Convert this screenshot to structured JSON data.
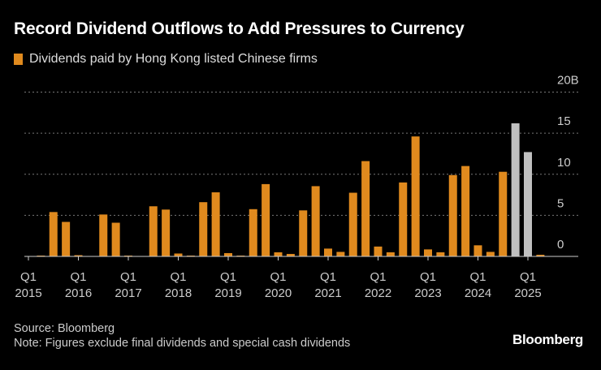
{
  "chart_data": {
    "type": "bar",
    "title": "Record Dividend Outflows to Add Pressures to Currency",
    "legend": [
      {
        "name": "Dividends paid by Hong Kong listed Chinese firms",
        "color": "#e08a1e"
      }
    ],
    "legend_placement": "top-left",
    "ylim": [
      0,
      20
    ],
    "yticks": [
      "0",
      "5",
      "10",
      "15",
      "20B"
    ],
    "ytick_values": [
      0,
      5,
      10,
      15,
      20
    ],
    "grid": true,
    "xtick_labels": [
      [
        "Q1",
        "2015"
      ],
      [
        "Q1",
        "2016"
      ],
      [
        "Q1",
        "2017"
      ],
      [
        "Q1",
        "2018"
      ],
      [
        "Q1",
        "2019"
      ],
      [
        "Q1",
        "2020"
      ],
      [
        "Q1",
        "2021"
      ],
      [
        "Q1",
        "2022"
      ],
      [
        "Q1",
        "2023"
      ],
      [
        "Q1",
        "2024"
      ],
      [
        "Q1",
        "2025"
      ]
    ],
    "categories": [
      "Q1 2015",
      "Q2 2015",
      "Q3 2015",
      "Q4 2015",
      "Q1 2016",
      "Q2 2016",
      "Q3 2016",
      "Q4 2016",
      "Q1 2017",
      "Q2 2017",
      "Q3 2017",
      "Q4 2017",
      "Q1 2018",
      "Q2 2018",
      "Q3 2018",
      "Q4 2018",
      "Q1 2019",
      "Q2 2019",
      "Q3 2019",
      "Q4 2019",
      "Q1 2020",
      "Q2 2020",
      "Q3 2020",
      "Q4 2020",
      "Q1 2021",
      "Q2 2021",
      "Q3 2021",
      "Q4 2021",
      "Q1 2022",
      "Q2 2022",
      "Q3 2022",
      "Q4 2022",
      "Q1 2023",
      "Q2 2023",
      "Q3 2023",
      "Q4 2023",
      "Q1 2024",
      "Q2 2024",
      "Q3 2024",
      "Q4 2024",
      "Q1 2025",
      "Q2 2025"
    ],
    "values": [
      0.05,
      0.1,
      5.4,
      4.2,
      0.15,
      0.05,
      5.1,
      4.1,
      0.1,
      0.05,
      6.1,
      5.7,
      0.35,
      0.1,
      6.6,
      7.8,
      0.4,
      0.1,
      5.75,
      8.8,
      0.5,
      0.3,
      5.6,
      8.55,
      0.95,
      0.55,
      7.75,
      11.6,
      1.2,
      0.5,
      9.0,
      14.6,
      0.85,
      0.5,
      9.9,
      11.0,
      1.35,
      0.55,
      10.3,
      16.2,
      12.7,
      0.2
    ],
    "bar_colors": [
      "#e08a1e",
      "#e08a1e",
      "#e08a1e",
      "#e08a1e",
      "#e08a1e",
      "#e08a1e",
      "#e08a1e",
      "#e08a1e",
      "#e08a1e",
      "#e08a1e",
      "#e08a1e",
      "#e08a1e",
      "#e08a1e",
      "#e08a1e",
      "#e08a1e",
      "#e08a1e",
      "#e08a1e",
      "#e08a1e",
      "#e08a1e",
      "#e08a1e",
      "#e08a1e",
      "#e08a1e",
      "#e08a1e",
      "#e08a1e",
      "#e08a1e",
      "#e08a1e",
      "#e08a1e",
      "#e08a1e",
      "#e08a1e",
      "#e08a1e",
      "#e08a1e",
      "#e08a1e",
      "#e08a1e",
      "#e08a1e",
      "#e08a1e",
      "#e08a1e",
      "#e08a1e",
      "#e08a1e",
      "#e08a1e",
      "#c0c0c0",
      "#c0c0c0",
      "#e08a1e"
    ]
  },
  "footer": {
    "source": "Source: Bloomberg",
    "note": "Note: Figures exclude final dividends and special cash dividends",
    "logo": "Bloomberg"
  }
}
